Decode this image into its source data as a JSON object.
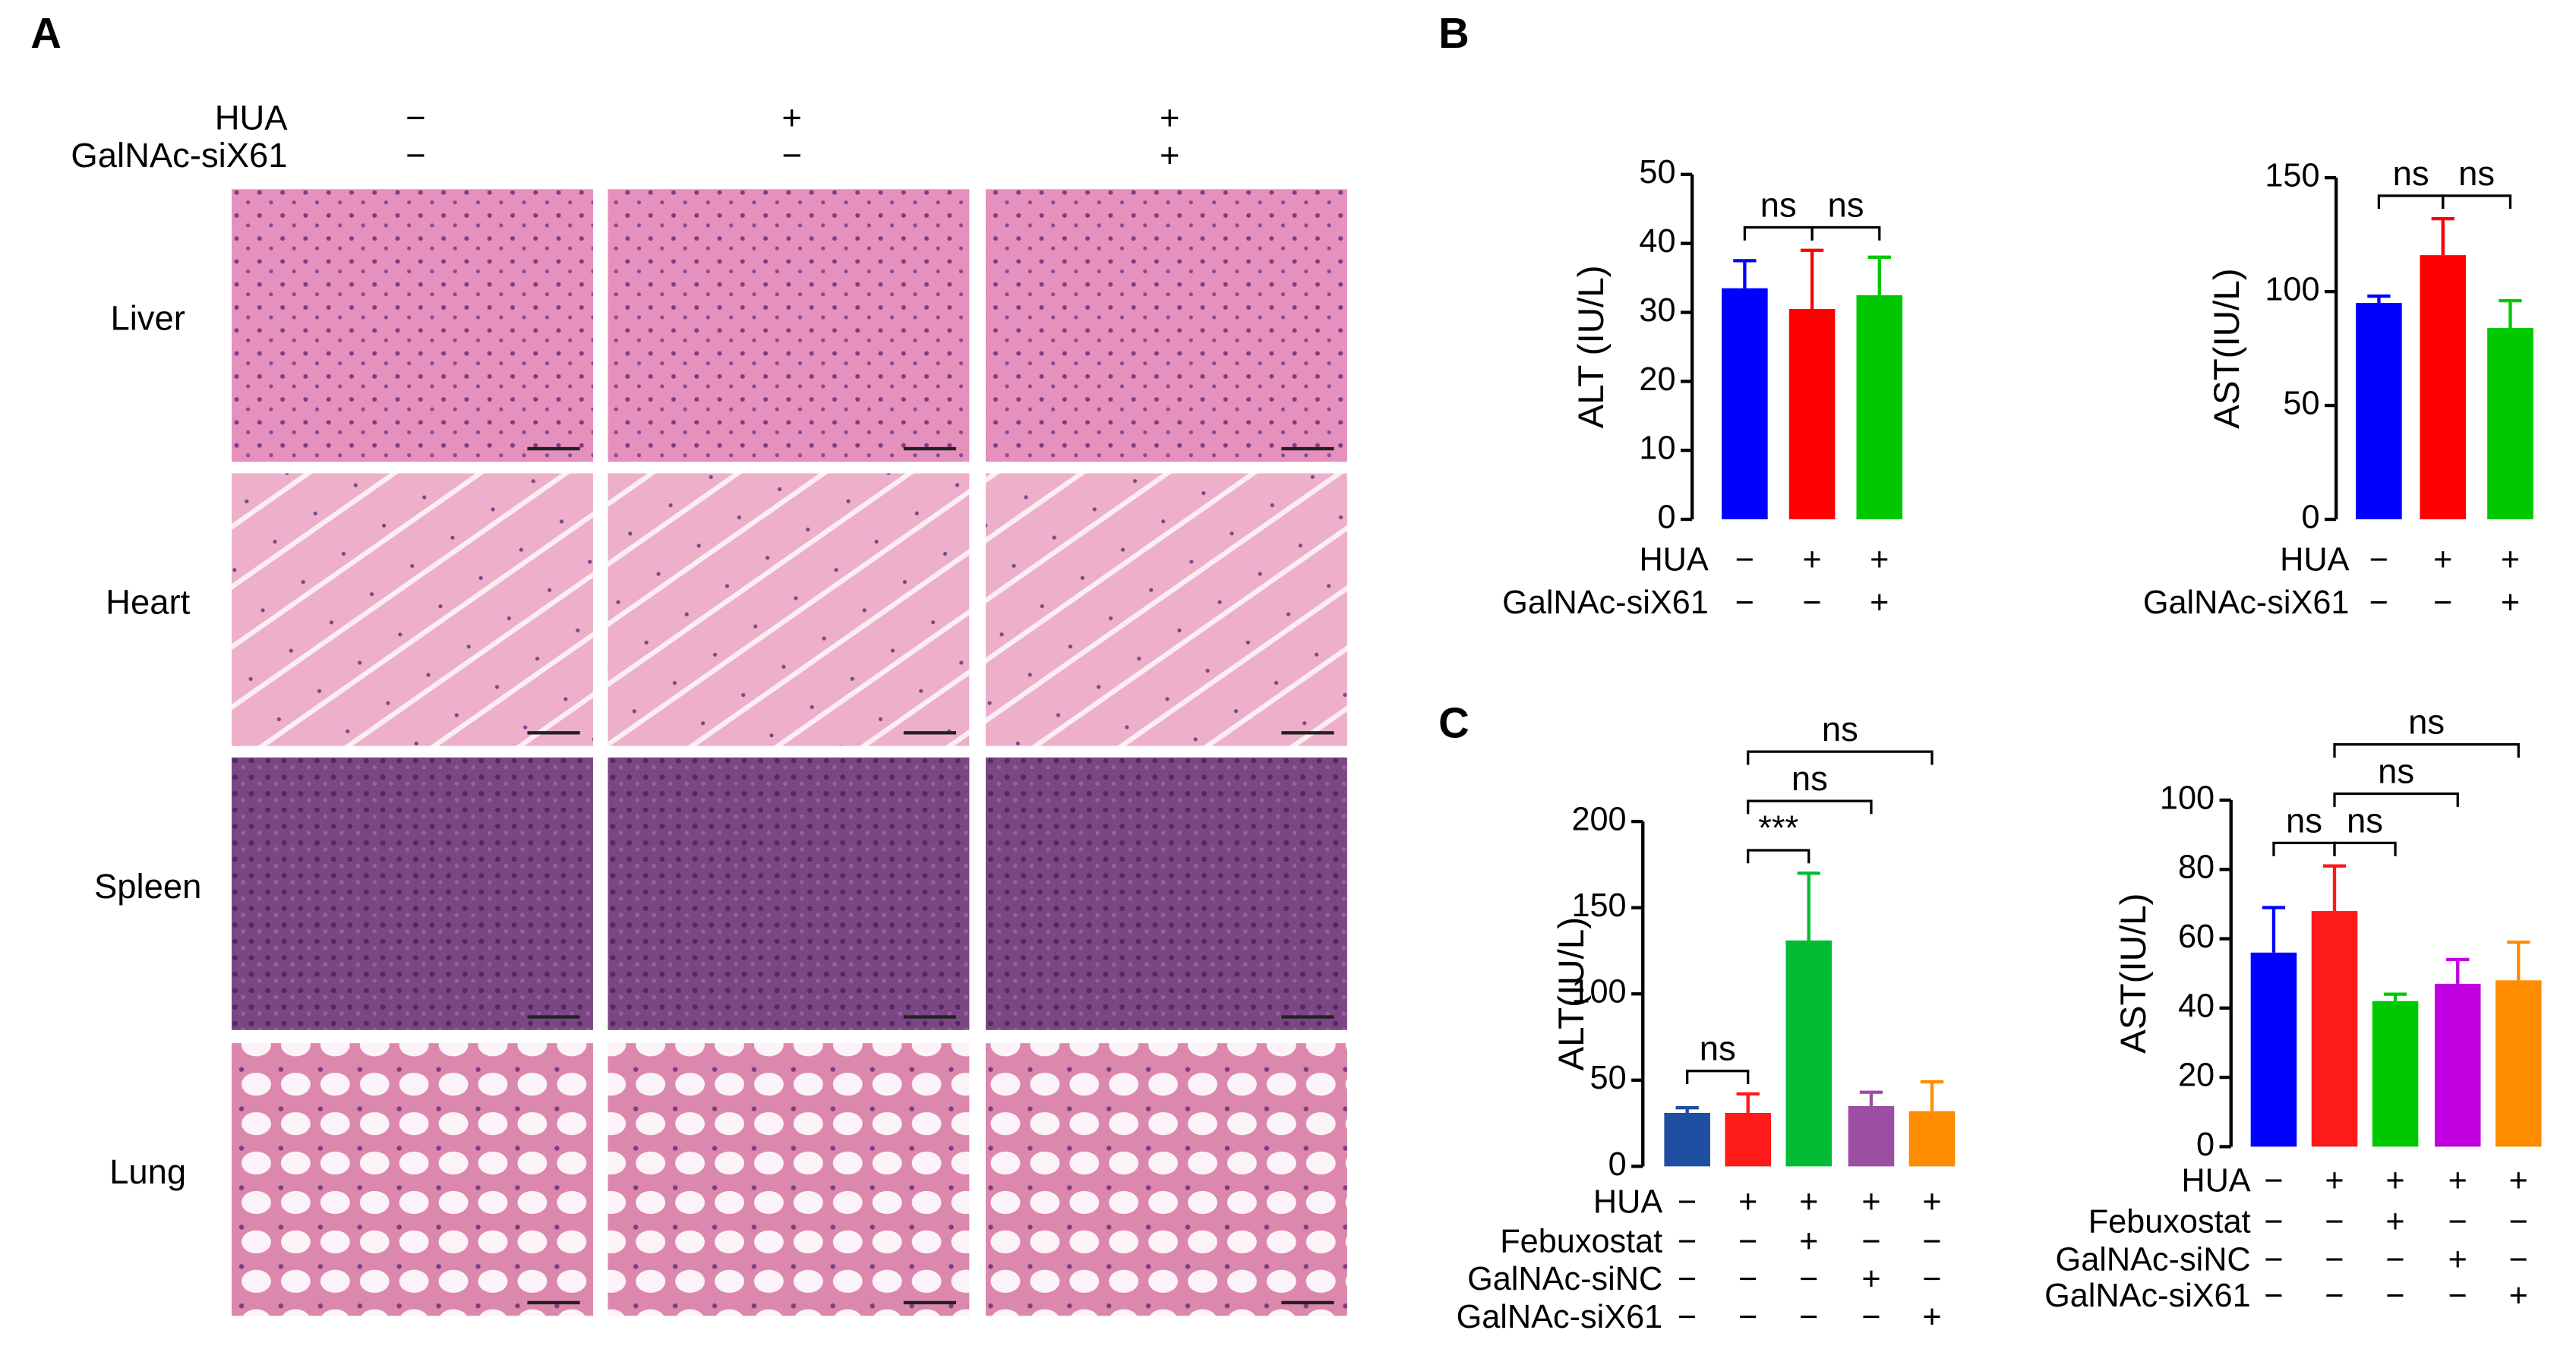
{
  "panel_labels": [
    "A",
    "B",
    "C"
  ],
  "panel_a": {
    "rows": [
      {
        "name": "HUA",
        "signs": [
          "−",
          "+",
          "+"
        ]
      },
      {
        "name": "GalNAc-siX61",
        "signs": [
          "−",
          "−",
          "+"
        ]
      }
    ],
    "tissues": [
      "Liver",
      "Heart",
      "Spleen",
      "Lung"
    ]
  },
  "chart_data": [
    {
      "type": "bar",
      "y_label": "ALT (IU/L)",
      "ylim": [
        0,
        50
      ],
      "yticks": [
        0,
        10,
        20,
        30,
        40,
        50
      ],
      "values": [
        33.5,
        30.5,
        32.5
      ],
      "errors": [
        4,
        8.5,
        5.5
      ],
      "colors": [
        "#0000ff",
        "#ff0000",
        "#00c800"
      ],
      "conditions": [
        {
          "name": "HUA",
          "signs": [
            "−",
            "+",
            "+"
          ]
        },
        {
          "name": "GalNAc-siX61",
          "signs": [
            "−",
            "−",
            "+"
          ]
        }
      ],
      "comparisons": [
        {
          "pair": [
            0,
            1
          ],
          "label": "ns"
        },
        {
          "pair": [
            1,
            2
          ],
          "label": "ns"
        }
      ]
    },
    {
      "type": "bar",
      "y_label": "AST(IU/L)",
      "ylim": [
        0,
        150
      ],
      "yticks": [
        0,
        50,
        100,
        150
      ],
      "values": [
        95,
        116,
        84
      ],
      "errors": [
        3,
        16,
        12
      ],
      "colors": [
        "#0000ff",
        "#ff0000",
        "#00c800"
      ],
      "conditions": [
        {
          "name": "HUA",
          "signs": [
            "−",
            "+",
            "+"
          ]
        },
        {
          "name": "GalNAc-siX61",
          "signs": [
            "−",
            "−",
            "+"
          ]
        }
      ],
      "comparisons": [
        {
          "pair": [
            0,
            1
          ],
          "label": "ns"
        },
        {
          "pair": [
            1,
            2
          ],
          "label": "ns"
        }
      ]
    },
    {
      "type": "bar",
      "y_label": "ALT(IU/L)",
      "ylim": [
        0,
        200
      ],
      "yticks": [
        0,
        50,
        100,
        150,
        200
      ],
      "values": [
        31,
        31,
        131,
        35,
        32
      ],
      "errors": [
        3,
        11,
        39,
        8,
        17
      ],
      "colors": [
        "#1f4fa0",
        "#ff1a1a",
        "#00bb33",
        "#9b4ea3",
        "#ff8c00"
      ],
      "conditions": [
        {
          "name": "HUA",
          "signs": [
            "−",
            "+",
            "+",
            "+",
            "+"
          ]
        },
        {
          "name": "Febuxostat",
          "signs": [
            "−",
            "−",
            "+",
            "−",
            "−"
          ]
        },
        {
          "name": "GalNAc-siNC",
          "signs": [
            "−",
            "−",
            "−",
            "+",
            "−"
          ]
        },
        {
          "name": "GalNAc-siX61",
          "signs": [
            "−",
            "−",
            "−",
            "−",
            "+"
          ]
        }
      ],
      "comparisons": [
        {
          "pair": [
            0,
            1
          ],
          "label": "ns"
        },
        {
          "pair": [
            1,
            2
          ],
          "label": "***"
        },
        {
          "pair": [
            1,
            3
          ],
          "label": "ns"
        },
        {
          "pair": [
            1,
            4
          ],
          "label": "ns"
        }
      ]
    },
    {
      "type": "bar",
      "y_label": "AST(IU/L)",
      "ylim": [
        0,
        100
      ],
      "yticks": [
        0,
        20,
        40,
        60,
        80,
        100
      ],
      "values": [
        56,
        68,
        42,
        47,
        48
      ],
      "errors": [
        13,
        13,
        2,
        7,
        11
      ],
      "colors": [
        "#0000ff",
        "#ff1a1a",
        "#00c800",
        "#c000e0",
        "#ff8c00"
      ],
      "conditions": [
        {
          "name": "HUA",
          "signs": [
            "−",
            "+",
            "+",
            "+",
            "+"
          ]
        },
        {
          "name": "Febuxostat",
          "signs": [
            "−",
            "−",
            "+",
            "−",
            "−"
          ]
        },
        {
          "name": "GalNAc-siNC",
          "signs": [
            "−",
            "−",
            "−",
            "+",
            "−"
          ]
        },
        {
          "name": "GalNAc-siX61",
          "signs": [
            "−",
            "−",
            "−",
            "−",
            "+"
          ]
        }
      ],
      "comparisons": [
        {
          "pair": [
            0,
            1
          ],
          "label": "ns"
        },
        {
          "pair": [
            1,
            2
          ],
          "label": "ns"
        },
        {
          "pair": [
            1,
            3
          ],
          "label": "ns"
        },
        {
          "pair": [
            1,
            4
          ],
          "label": "ns"
        }
      ]
    }
  ]
}
